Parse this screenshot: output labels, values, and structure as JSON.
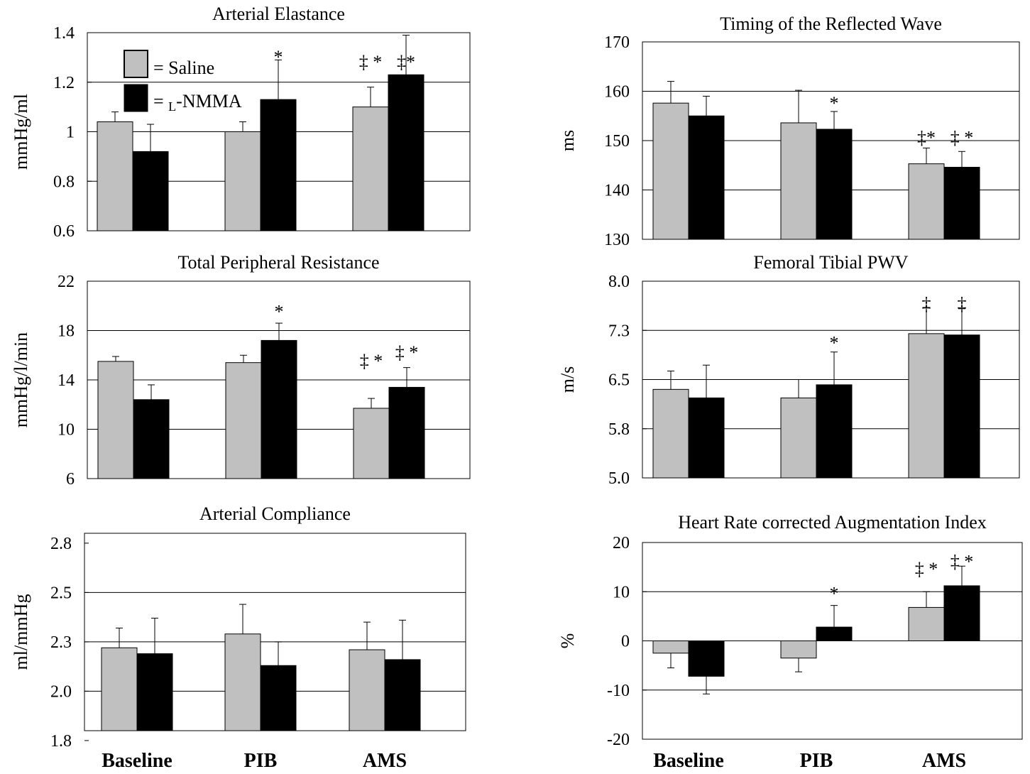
{
  "colors": {
    "saline": "#c0c0c0",
    "lnmma": "#000000",
    "grid": "#000000",
    "frame": "#000000"
  },
  "categories": [
    "Baseline",
    "PIB",
    "AMS"
  ],
  "legend": {
    "saline": "= Saline",
    "lnmma_prefix": "= ",
    "lnmma_sub": "L",
    "lnmma_suffix": "-NMMA"
  },
  "chart_data": [
    {
      "id": "ae",
      "type": "bar",
      "title": "Arterial Elastance",
      "ylabel": "mmHg/ml",
      "ylim": [
        0.6,
        1.4
      ],
      "yticks": [
        "0.6",
        "0.8",
        "1",
        "1.2",
        "1.4"
      ],
      "tickvals": [
        0.6,
        0.8,
        1.0,
        1.2,
        1.4
      ],
      "gridlines": [
        0.8,
        1.0,
        1.2
      ],
      "categories": [
        "Baseline",
        "PIB",
        "AMS"
      ],
      "series": [
        {
          "name": "= Saline",
          "values": [
            1.04,
            1.0,
            1.1
          ],
          "errors": [
            0.04,
            0.04,
            0.08
          ]
        },
        {
          "name": "= L-NMMA",
          "values": [
            0.92,
            1.13,
            1.23
          ],
          "errors": [
            0.11,
            0.16,
            0.16
          ]
        }
      ],
      "annotations": [
        {
          "text": "*",
          "category": 1,
          "series": 1,
          "level": 1.3
        },
        {
          "text": "‡ *",
          "category": 2,
          "series": 0,
          "level": 1.28
        },
        {
          "text": "‡*",
          "category": 2,
          "series": 1,
          "level": 1.28
        }
      ]
    },
    {
      "id": "trw",
      "type": "bar",
      "title": "Timing of the Reflected Wave",
      "ylabel": "ms",
      "ylim": [
        130,
        170
      ],
      "yticks": [
        "130",
        "140",
        "150",
        "160",
        "170"
      ],
      "tickvals": [
        130,
        140,
        150,
        160,
        170
      ],
      "gridlines": [
        140,
        150,
        160
      ],
      "categories": [
        "Baseline",
        "PIB",
        "AMS"
      ],
      "series": [
        {
          "name": "= Saline",
          "values": [
            157.6,
            153.6,
            145.3
          ],
          "errors": [
            4.4,
            6.6,
            3.2
          ]
        },
        {
          "name": "= L-NMMA",
          "values": [
            155,
            152.3,
            144.6
          ],
          "errors": [
            4,
            3.6,
            3.2
          ]
        }
      ],
      "annotations": [
        {
          "text": "*",
          "category": 1,
          "series": 1,
          "level": 157.5
        },
        {
          "text": "‡*",
          "category": 2,
          "series": 0,
          "level": 150.5
        },
        {
          "text": "‡ *",
          "category": 2,
          "series": 1,
          "level": 150.5
        }
      ]
    },
    {
      "id": "tpr",
      "type": "bar",
      "title": "Total Peripheral Resistance",
      "ylabel": "mmHg/l/min",
      "ylim": [
        6,
        22
      ],
      "yticks": [
        "6",
        "10",
        "14",
        "18",
        "22"
      ],
      "tickvals": [
        6,
        10,
        14,
        18,
        22
      ],
      "gridlines": [
        10,
        14,
        18
      ],
      "categories": [
        "Baseline",
        "PIB",
        "AMS"
      ],
      "series": [
        {
          "name": "= Saline",
          "values": [
            15.5,
            15.4,
            11.7
          ],
          "errors": [
            0.4,
            0.6,
            0.8
          ]
        },
        {
          "name": "= L-NMMA",
          "values": [
            12.4,
            17.2,
            13.4
          ],
          "errors": [
            1.2,
            1.4,
            1.6
          ]
        }
      ],
      "annotations": [
        {
          "text": "*",
          "category": 1,
          "series": 1,
          "level": 19.5
        },
        {
          "text": "‡ *",
          "category": 2,
          "series": 0,
          "level": 15.5
        },
        {
          "text": "‡ *",
          "category": 2,
          "series": 1,
          "level": 16.2
        }
      ]
    },
    {
      "id": "ftpwv",
      "type": "bar",
      "title": "Femoral Tibial PWV",
      "ylabel": "m/s",
      "ylim": [
        5.0,
        8.0
      ],
      "yticks": [
        "5.0",
        "5.8",
        "6.5",
        "7.3",
        "8.0"
      ],
      "tickvals": [
        5.0,
        5.75,
        6.5,
        7.25,
        8.0
      ],
      "gridlines": [
        5.75,
        6.5,
        7.25
      ],
      "categories": [
        "Baseline",
        "PIB",
        "AMS"
      ],
      "series": [
        {
          "name": "= Saline",
          "values": [
            6.35,
            6.22,
            7.2
          ],
          "errors": [
            0.28,
            0.28,
            0.4
          ]
        },
        {
          "name": "= L-NMMA",
          "values": [
            6.22,
            6.42,
            7.18
          ],
          "errors": [
            0.5,
            0.5,
            0.4
          ]
        }
      ],
      "annotations": [
        {
          "text": "*",
          "category": 1,
          "series": 1,
          "level": 7.05
        },
        {
          "text": "‡",
          "category": 2,
          "series": 0,
          "level": 7.65
        },
        {
          "text": "‡",
          "category": 2,
          "series": 1,
          "level": 7.65
        }
      ]
    },
    {
      "id": "ac",
      "type": "bar",
      "title": "Arterial Compliance",
      "ylabel": "ml/mmHg",
      "ylim": [
        1.8,
        2.8
      ],
      "yticks": [
        "1.8",
        "2.0",
        "2.3",
        "2.5",
        "2.8"
      ],
      "tickvals": [
        1.75,
        2.0,
        2.25,
        2.5,
        2.75
      ],
      "gridlines": [
        2.0,
        2.25,
        2.5
      ],
      "categories": [
        "Baseline",
        "PIB",
        "AMS"
      ],
      "series": [
        {
          "name": "= Saline",
          "values": [
            2.22,
            2.29,
            2.21
          ],
          "errors": [
            0.1,
            0.15,
            0.14
          ]
        },
        {
          "name": "= L-NMMA",
          "values": [
            2.19,
            2.13,
            2.16
          ],
          "errors": [
            0.18,
            0.12,
            0.2
          ]
        }
      ],
      "annotations": []
    },
    {
      "id": "aix",
      "type": "bar",
      "title": "Heart Rate corrected Augmentation Index",
      "ylabel": "%",
      "ylim": [
        -20,
        20
      ],
      "yticks": [
        "-20",
        "-10",
        "0",
        "10",
        "20"
      ],
      "tickvals": [
        -20,
        -10,
        0,
        10,
        20
      ],
      "gridlines": [
        -10,
        0,
        10
      ],
      "categories": [
        "Baseline",
        "PIB",
        "AMS"
      ],
      "series": [
        {
          "name": "= Saline",
          "values": [
            -2.5,
            -3.5,
            6.8
          ],
          "errors": [
            3,
            2.8,
            3.2
          ]
        },
        {
          "name": "= L-NMMA",
          "values": [
            -7.2,
            2.8,
            11.2
          ],
          "errors": [
            3.6,
            4.4,
            4
          ]
        }
      ],
      "annotations": [
        {
          "text": "*",
          "category": 1,
          "series": 1,
          "level": 9.5
        },
        {
          "text": "‡ *",
          "category": 2,
          "series": 0,
          "level": 14.5
        },
        {
          "text": "‡ *",
          "category": 2,
          "series": 1,
          "level": 16
        }
      ]
    }
  ]
}
